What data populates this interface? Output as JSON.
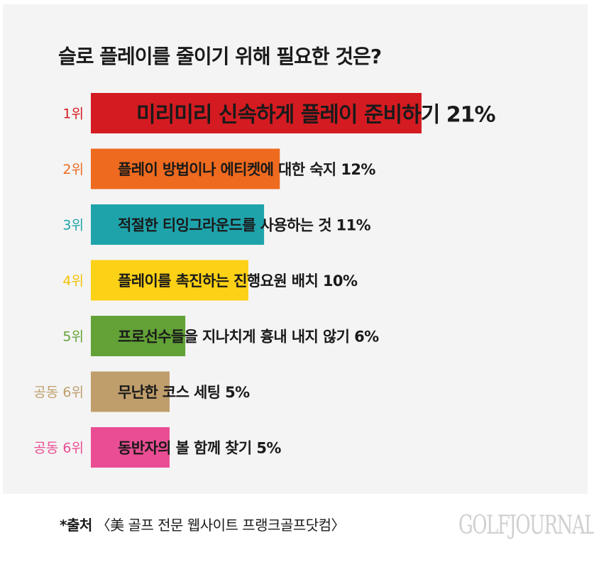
{
  "title": "슬로 플레이를 줄이기 위해 필요한 것은?",
  "source": {
    "prefix": "*출처",
    "text": "〈美 골프 전문 웹사이트 프랭크골프닷컴〉"
  },
  "logo_text": "GOLFJOURNAL",
  "chart_data": {
    "type": "bar",
    "orientation": "horizontal",
    "title": "슬로 플레이를 줄이기 위해 필요한 것은?",
    "xlim": [
      0,
      21
    ],
    "grid": false,
    "categories": [
      "미리미리 신속하게 플레이 준비하기",
      "플레이 방법이나 에티켓에 대한 숙지",
      "적절한 티잉그라운드를 사용하는 것",
      "플레이를 촉진하는 진행요원 배치",
      "프로선수들을 지나치게 흉내 내지 않기",
      "무난한 코스 세팅",
      "동반자의 볼 함께 찾기"
    ],
    "values": [
      21,
      12,
      11,
      10,
      6,
      5,
      5
    ],
    "value_labels": [
      "21%",
      "12%",
      "11%",
      "10%",
      "6%",
      "5%",
      "5%"
    ],
    "ranks": [
      "1위",
      "2위",
      "3위",
      "4위",
      "5위",
      "공동 6위",
      "공동 6위"
    ],
    "colors": [
      "#d41b21",
      "#ee6a1e",
      "#1fa3ab",
      "#fcd116",
      "#62a236",
      "#bf9e6c",
      "#ea4d93"
    ],
    "rank_colors": [
      "#d41b21",
      "#ee6a1e",
      "#1fa3ab",
      "#f2c200",
      "#62a236",
      "#bf9e6c",
      "#ea4d93"
    ]
  }
}
